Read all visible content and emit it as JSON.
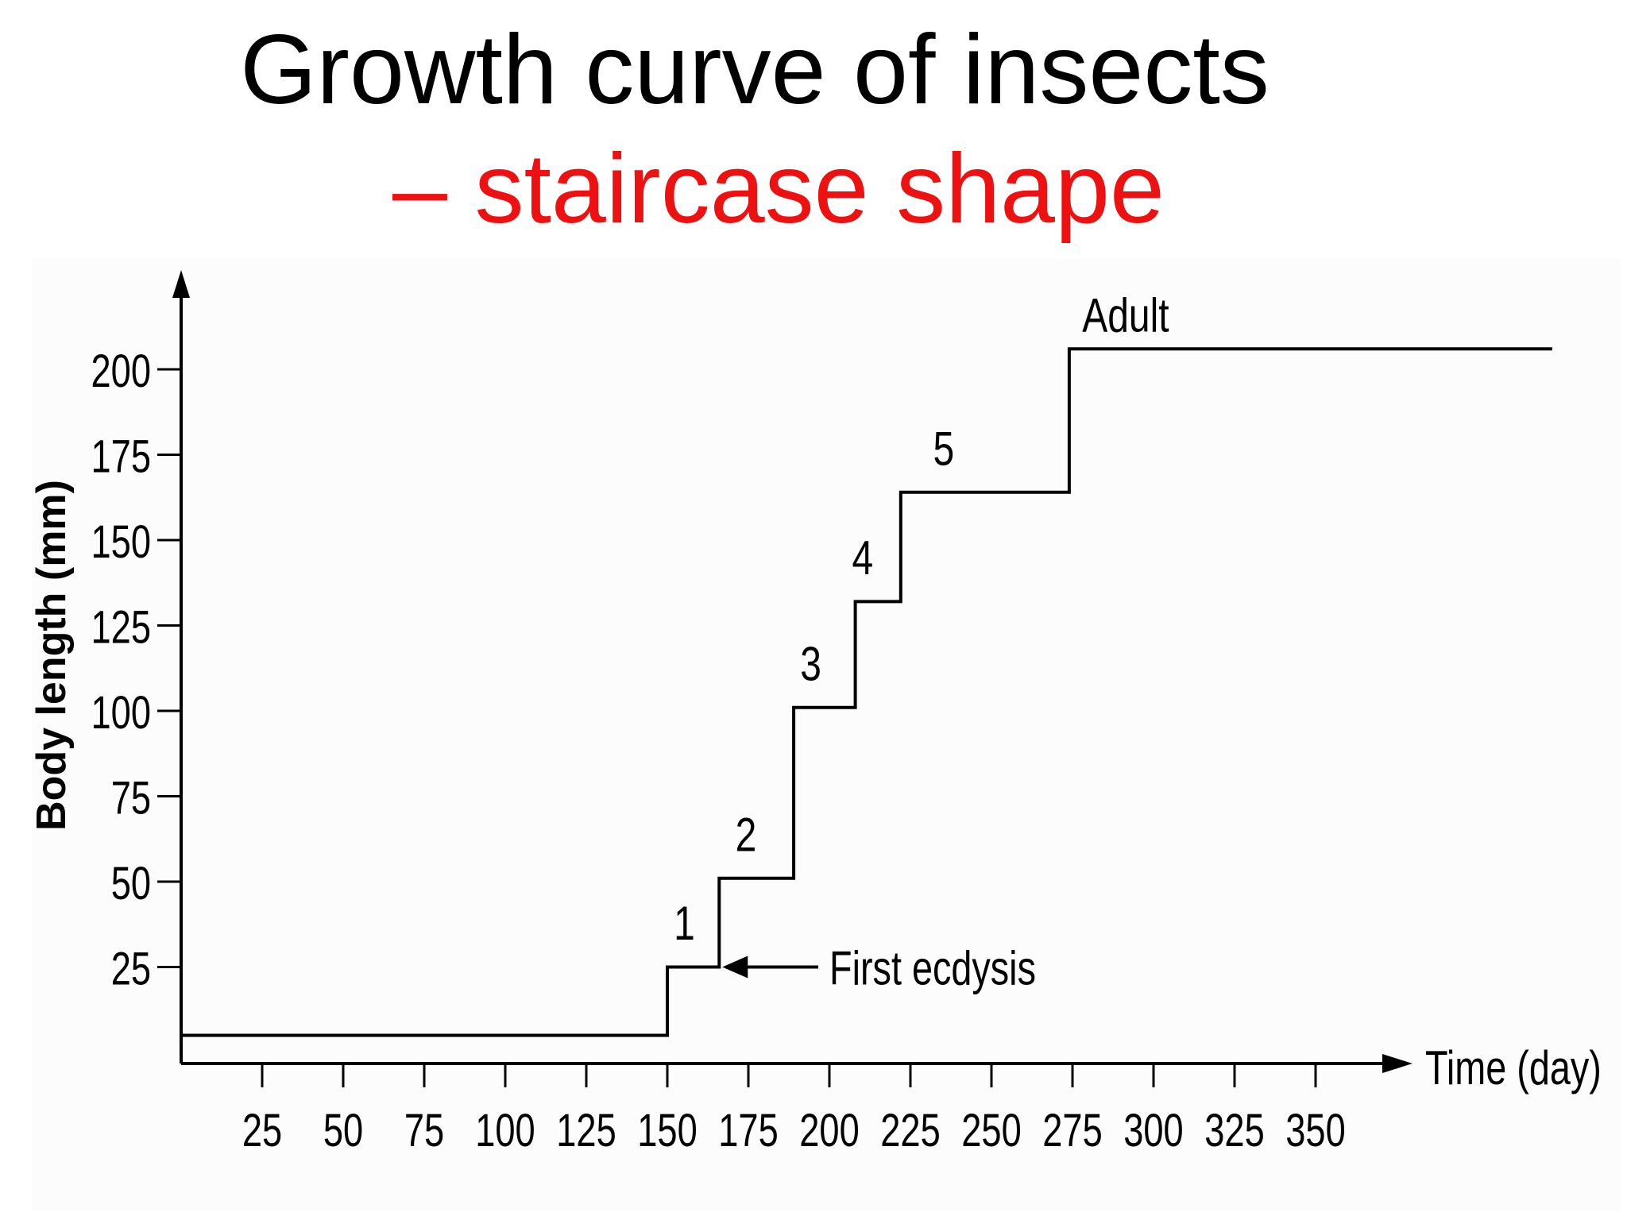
{
  "title": {
    "line1": "Growth curve of insects",
    "line2": "– staircase shape",
    "line2_color": "#ee1111"
  },
  "chart_data": {
    "type": "line",
    "step": true,
    "title": "",
    "xlabel": "Time (day)",
    "ylabel": "Body length (mm)",
    "xlim": [
      0,
      415
    ],
    "ylim": [
      0,
      215
    ],
    "x_ticks": [
      25,
      50,
      75,
      100,
      125,
      150,
      175,
      200,
      225,
      250,
      275,
      300,
      325,
      350
    ],
    "y_ticks": [
      25,
      50,
      75,
      100,
      125,
      150,
      175,
      200
    ],
    "series": [
      {
        "points": [
          {
            "x": 0,
            "y": 5
          },
          {
            "x": 150,
            "y": 5
          },
          {
            "x": 150,
            "y": 25
          },
          {
            "x": 166,
            "y": 25
          },
          {
            "x": 166,
            "y": 51
          },
          {
            "x": 189,
            "y": 51
          },
          {
            "x": 189,
            "y": 101
          },
          {
            "x": 208,
            "y": 101
          },
          {
            "x": 208,
            "y": 132
          },
          {
            "x": 222,
            "y": 132
          },
          {
            "x": 222,
            "y": 164
          },
          {
            "x": 274,
            "y": 164
          },
          {
            "x": 274,
            "y": 206
          },
          {
            "x": 423,
            "y": 206
          }
        ]
      }
    ],
    "stage_labels": [
      {
        "text": "1",
        "x": 152,
        "y": 33
      },
      {
        "text": "2",
        "x": 171,
        "y": 59
      },
      {
        "text": "3",
        "x": 191,
        "y": 109
      },
      {
        "text": "4",
        "x": 207,
        "y": 140
      },
      {
        "text": "5",
        "x": 232,
        "y": 172
      },
      {
        "text": "Adult",
        "x": 278,
        "y": 211
      }
    ],
    "annotations": [
      {
        "text": "First ecdysis",
        "x": 200,
        "y": 25,
        "arrow_to": {
          "x": 166,
          "y": 25
        }
      }
    ],
    "grid": false,
    "legend": "none"
  }
}
